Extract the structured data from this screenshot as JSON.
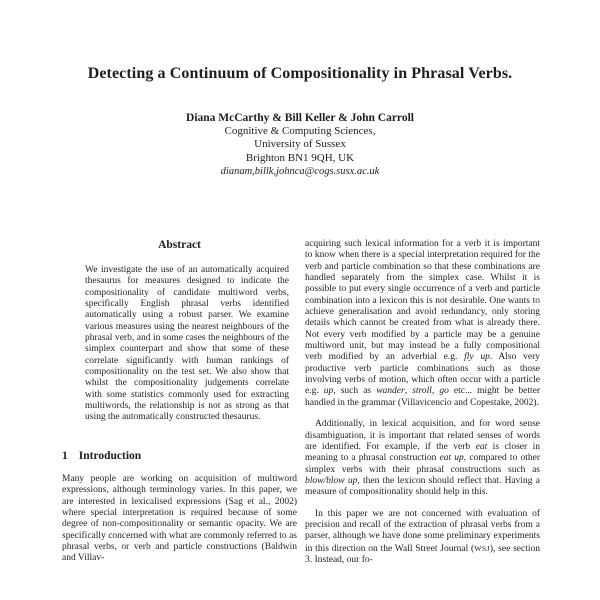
{
  "paper": {
    "title": "Detecting a Continuum of Compositionality in Phrasal Verbs.",
    "authors": "Diana McCarthy & Bill Keller & John Carroll",
    "affiliation": [
      "Cognitive & Computing Sciences,",
      "University of Sussex",
      "Brighton BN1 9QH, UK"
    ],
    "email": "dianam,billk,johnca@cogs.susx.ac.uk",
    "abstract_heading": "Abstract",
    "abstract_text": "We investigate the use of an automatically acquired thesaurus for measures designed to indicate the compositionality of candidate multiword verbs, specifically English phrasal verbs identified automatically using a robust parser. We examine various measures using the nearest neighbours of the phrasal verb, and in some cases the neighbours of the simplex counterpart and show that some of these correlate significantly with human rankings of compositionality on the test set. We also show that whilst the compositionality judgements correlate with some statistics commonly used for extracting multiwords, the relationship is not as strong as that using the automatically constructed thesaurus.",
    "section1": {
      "number": "1",
      "title": "Introduction"
    },
    "left_paragraphs": [
      {
        "segments": [
          {
            "t": "Many people are working on acquisition of multiword expressions, although terminology varies. In this paper, we are interested in lexicalised expressions (Sag et al., 2002) where special interpretation is required because of some degree of non-compositionality or semantic opacity. We are specifically concerned with what are commonly referred to as phrasal verbs, or verb and particle constructions (Baldwin and Villav-"
          }
        ]
      }
    ],
    "right_paragraphs": [
      {
        "segments": [
          {
            "t": "acquiring such lexical information for a verb it is important to know when there is a special interpretation required for the verb and particle combination so that these combinations are handled separately from the simplex case. Whilst it is possible to put every single occurrence of a verb and particle combination into a lexicon this is not desirable. One wants to achieve generalisation and avoid redundancy, only storing details which cannot be created from what is already there. Not every verb modified by a particle may be a genuine multiword unit, but may instead be a fully compositional verb modified by an adverbial e.g. "
          },
          {
            "t": "fly up",
            "i": true
          },
          {
            "t": ". Also very productive verb particle combinations such as those involving verbs of motion, which often occur with a particle e.g. "
          },
          {
            "t": "up",
            "i": true
          },
          {
            "t": ", such as "
          },
          {
            "t": "wander",
            "i": true
          },
          {
            "t": ", "
          },
          {
            "t": "stroll",
            "i": true
          },
          {
            "t": ", "
          },
          {
            "t": "go",
            "i": true
          },
          {
            "t": " etc... might be better handled in the grammar (Villavicencio and Copestake, 2002)."
          }
        ]
      },
      {
        "segments": [
          {
            "t": "Additionally, in lexical acquisition, and for word sense disambiguation, it is important that related senses of words are identified. For example, if the verb "
          },
          {
            "t": "eat",
            "i": true
          },
          {
            "t": " is closer in meaning to a phrasal construction "
          },
          {
            "t": "eat up",
            "i": true
          },
          {
            "t": ", compared to other simplex verbs with their phrasal constructions such as "
          },
          {
            "t": "blow/blow up",
            "i": true
          },
          {
            "t": ", then the lexicon should reflect that. Having a measure of compositionality should help in this."
          }
        ]
      },
      {
        "segments": [
          {
            "t": "In this paper we are not concerned with evaluation of precision and recall of the extraction of phrasal verbs from a parser, although we have done some preliminary experiments in this direction on the Wall Street Journal ("
          },
          {
            "t": "WSJ",
            "sc": true
          },
          {
            "t": "), see section 3. Instead, our fo-"
          }
        ]
      }
    ]
  }
}
